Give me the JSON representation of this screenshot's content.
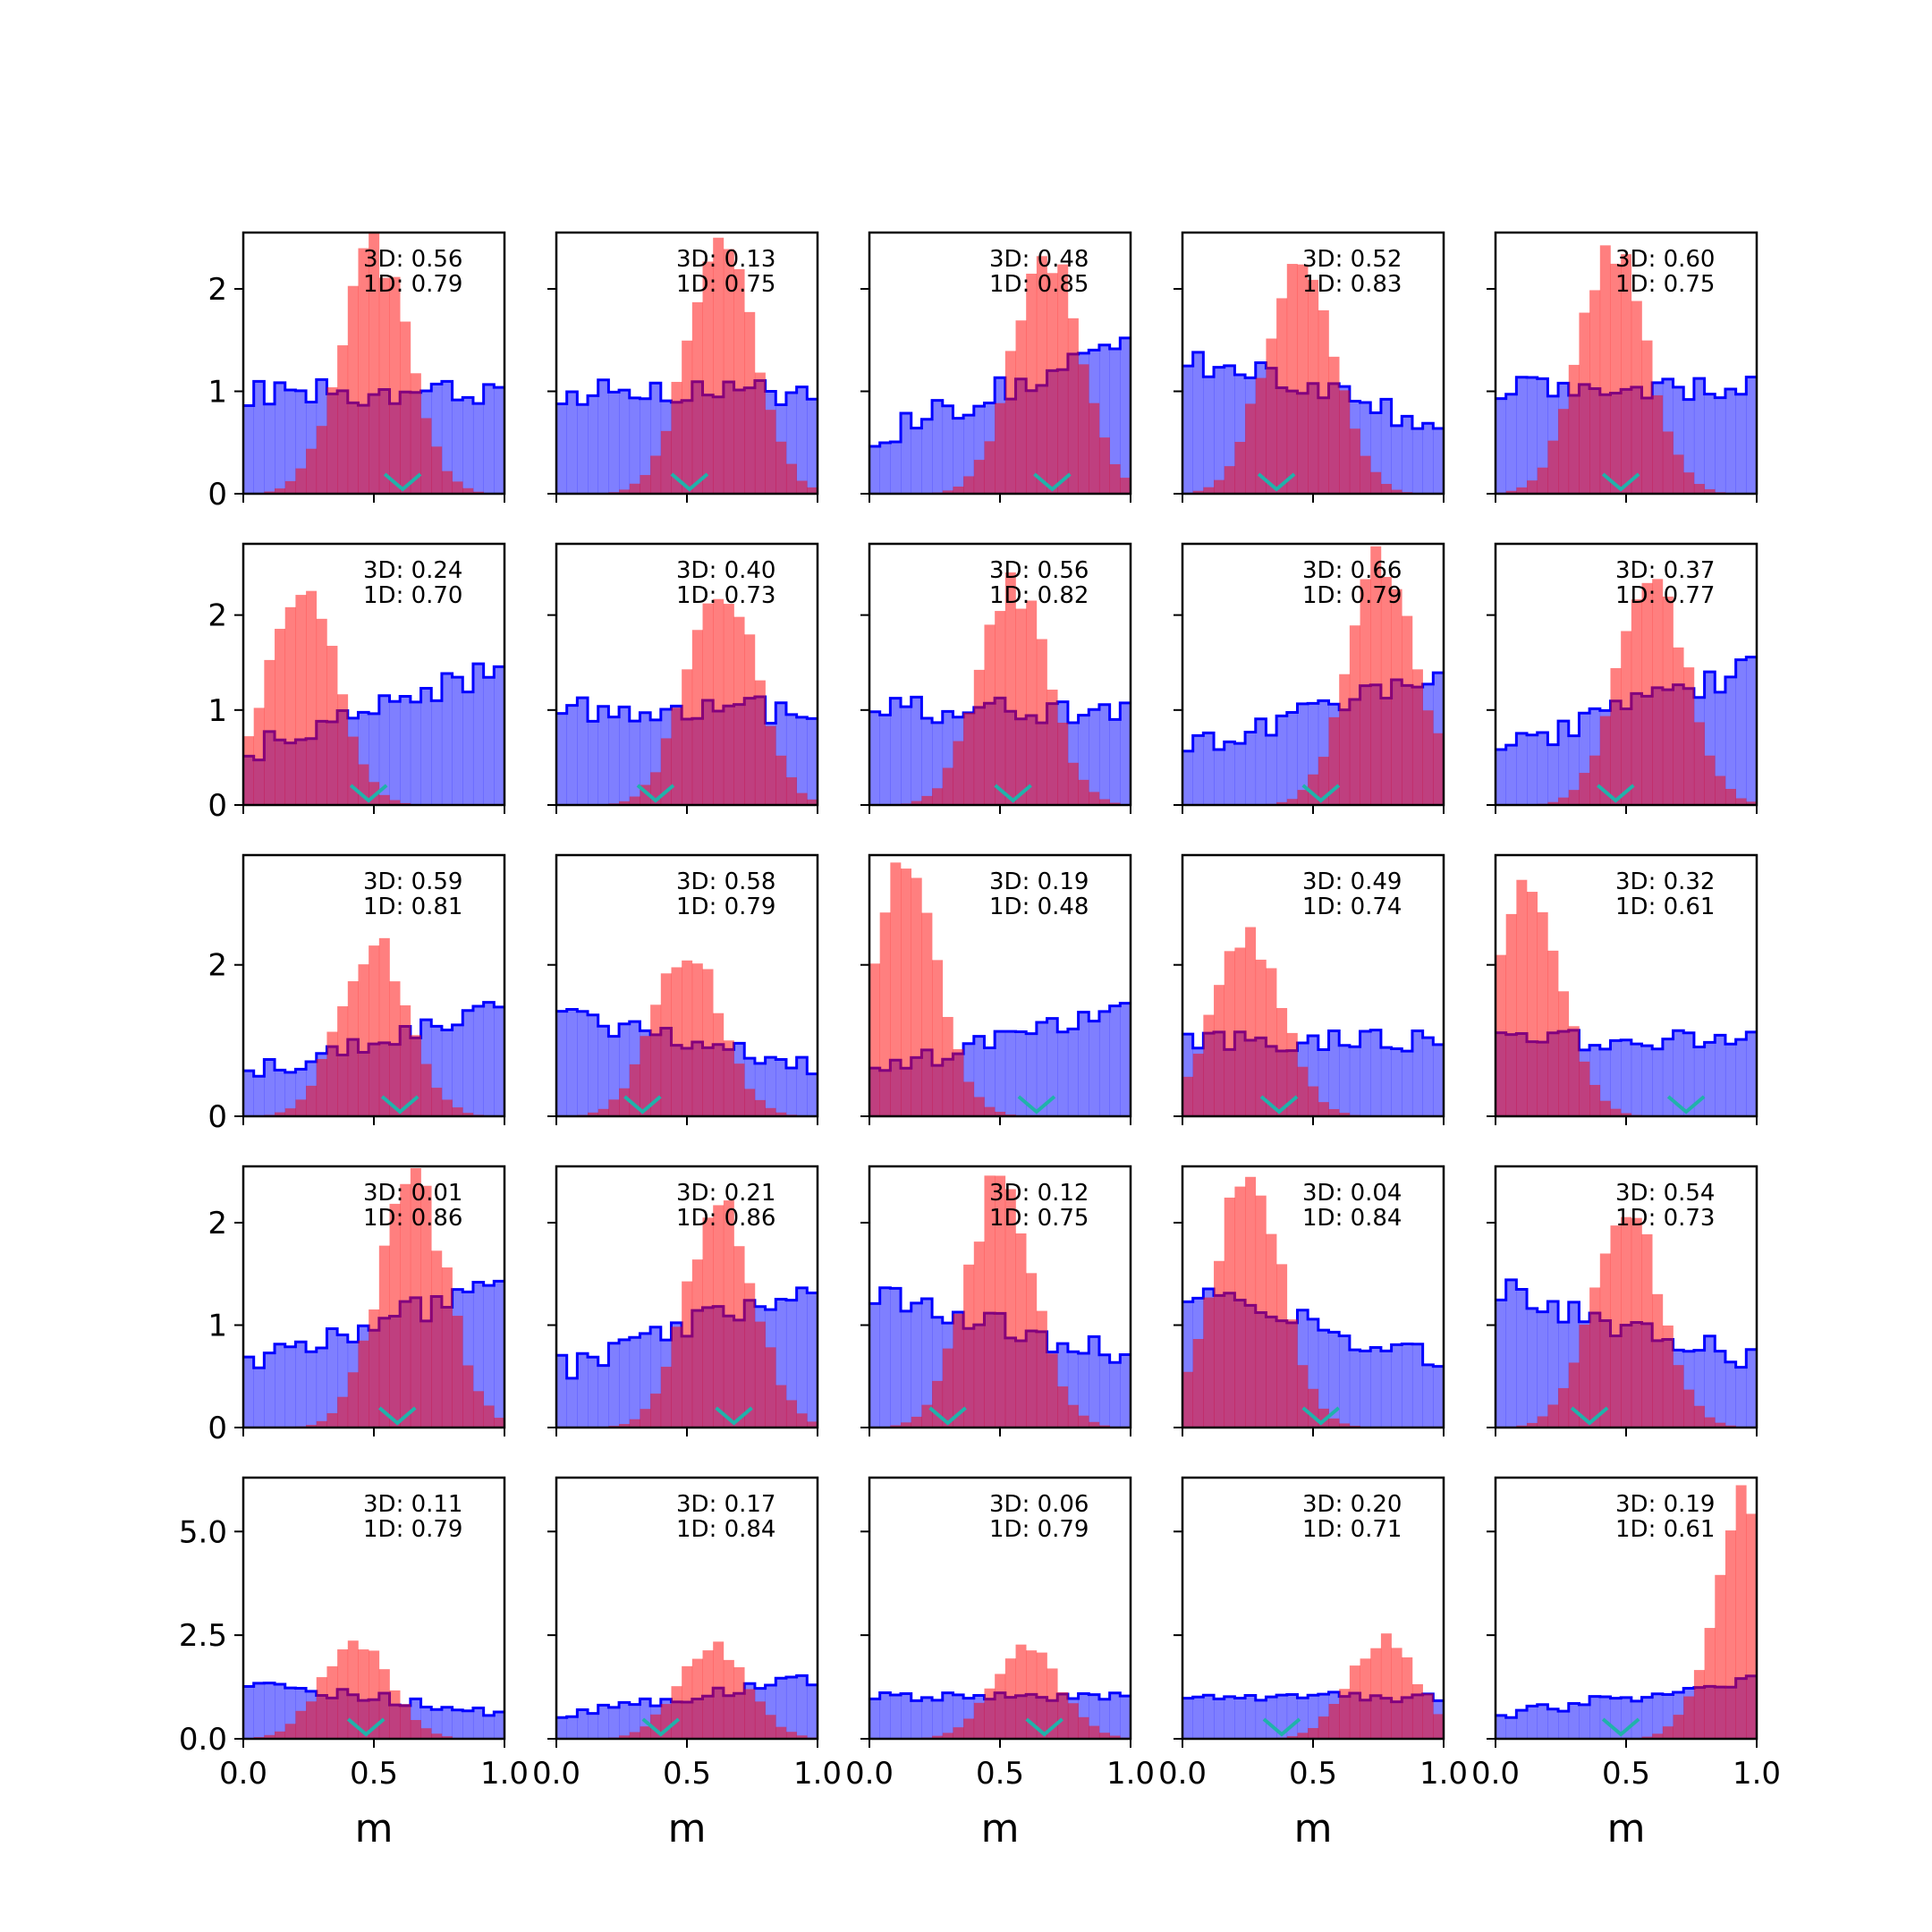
{
  "chart_data": {
    "type": "bar",
    "layout": {
      "rows": 5,
      "cols": 5
    },
    "xlim": [
      0,
      1
    ],
    "xlabel": "m",
    "ylim_by_row": [
      [
        0,
        2.55
      ],
      [
        0,
        2.75
      ],
      [
        0,
        3.45
      ],
      [
        0,
        2.55
      ],
      [
        0,
        6.3
      ]
    ],
    "xticks": {
      "values": [
        0.0,
        0.5,
        1.0
      ],
      "labels": [
        "0.0",
        "0.5",
        "1.0"
      ]
    },
    "yticks_by_row": [
      {
        "values": [
          0,
          1,
          2
        ],
        "labels": [
          "0",
          "1",
          "2"
        ]
      },
      {
        "values": [
          0,
          1,
          2
        ],
        "labels": [
          "0",
          "1",
          "2"
        ]
      },
      {
        "values": [
          0,
          2
        ],
        "labels": [
          "0",
          "2"
        ]
      },
      {
        "values": [
          0,
          1,
          2
        ],
        "labels": [
          "0",
          "1",
          "2"
        ]
      },
      {
        "values": [
          0,
          2.5,
          5
        ],
        "labels": [
          "0.0",
          "2.5",
          "5.0"
        ]
      }
    ],
    "colors": {
      "prior": "#0000ff",
      "posterior": "#ff0000",
      "truth": "#20b2aa"
    },
    "panels": [
      {
        "ann3d": "3D: 0.56",
        "ann1d": "1D: 0.79",
        "truth": 0.61,
        "prior_mode": "flat",
        "prior_level": 1.0,
        "post_mu": 0.5,
        "post_peak": 2.4
      },
      {
        "ann3d": "3D: 0.13",
        "ann1d": "1D: 0.75",
        "truth": 0.51,
        "prior_mode": "flat",
        "prior_level": 1.0,
        "post_mu": 0.63,
        "post_peak": 2.4
      },
      {
        "ann3d": "3D: 0.48",
        "ann1d": "1D: 0.85",
        "truth": 0.7,
        "prior_mode": "up",
        "prior_level": 1.0,
        "post_mu": 0.68,
        "post_peak": 2.35
      },
      {
        "ann3d": "3D: 0.52",
        "ann1d": "1D: 0.83",
        "truth": 0.36,
        "prior_mode": "down",
        "prior_level": 1.0,
        "post_mu": 0.45,
        "post_peak": 2.4
      },
      {
        "ann3d": "3D: 0.60",
        "ann1d": "1D: 0.75",
        "truth": 0.48,
        "prior_mode": "flat",
        "prior_level": 1.0,
        "post_mu": 0.45,
        "post_peak": 2.35
      },
      {
        "ann3d": "3D: 0.24",
        "ann1d": "1D: 0.70",
        "truth": 0.48,
        "prior_mode": "up",
        "prior_level": 1.0,
        "post_mu": 0.22,
        "post_peak": 2.4
      },
      {
        "ann3d": "3D: 0.40",
        "ann1d": "1D: 0.73",
        "truth": 0.38,
        "prior_mode": "flat",
        "prior_level": 1.0,
        "post_mu": 0.63,
        "post_peak": 2.4
      },
      {
        "ann3d": "3D: 0.56",
        "ann1d": "1D: 0.82",
        "truth": 0.55,
        "prior_mode": "flat",
        "prior_level": 1.0,
        "post_mu": 0.55,
        "post_peak": 2.35
      },
      {
        "ann3d": "3D: 0.66",
        "ann1d": "1D: 0.79",
        "truth": 0.53,
        "prior_mode": "up",
        "prior_level": 1.0,
        "post_mu": 0.77,
        "post_peak": 2.6
      },
      {
        "ann3d": "3D: 0.37",
        "ann1d": "1D: 0.77",
        "truth": 0.46,
        "prior_mode": "up",
        "prior_level": 1.0,
        "post_mu": 0.6,
        "post_peak": 2.4
      },
      {
        "ann3d": "3D: 0.59",
        "ann1d": "1D: 0.81",
        "truth": 0.6,
        "prior_mode": "up",
        "prior_level": 1.0,
        "post_mu": 0.5,
        "post_peak": 2.3
      },
      {
        "ann3d": "3D: 0.58",
        "ann1d": "1D: 0.79",
        "truth": 0.33,
        "prior_mode": "down",
        "prior_level": 1.0,
        "post_mu": 0.5,
        "post_peak": 2.2
      },
      {
        "ann3d": "3D: 0.19",
        "ann1d": "1D: 0.48",
        "truth": 0.64,
        "prior_mode": "up",
        "prior_level": 1.0,
        "post_mu": 0.13,
        "post_peak": 3.2
      },
      {
        "ann3d": "3D: 0.49",
        "ann1d": "1D: 0.74",
        "truth": 0.37,
        "prior_mode": "flat",
        "prior_level": 1.0,
        "post_mu": 0.25,
        "post_peak": 2.45
      },
      {
        "ann3d": "3D: 0.32",
        "ann1d": "1D: 0.61",
        "truth": 0.73,
        "prior_mode": "flat",
        "prior_level": 1.0,
        "post_mu": 0.12,
        "post_peak": 3.0
      },
      {
        "ann3d": "3D: 0.01",
        "ann1d": "1D: 0.86",
        "truth": 0.59,
        "prior_mode": "up",
        "prior_level": 1.0,
        "post_mu": 0.65,
        "post_peak": 2.4
      },
      {
        "ann3d": "3D: 0.21",
        "ann1d": "1D: 0.86",
        "truth": 0.68,
        "prior_mode": "up",
        "prior_level": 1.0,
        "post_mu": 0.63,
        "post_peak": 2.2
      },
      {
        "ann3d": "3D: 0.12",
        "ann1d": "1D: 0.75",
        "truth": 0.3,
        "prior_mode": "down",
        "prior_level": 1.0,
        "post_mu": 0.5,
        "post_peak": 2.4
      },
      {
        "ann3d": "3D: 0.04",
        "ann1d": "1D: 0.84",
        "truth": 0.53,
        "prior_mode": "down",
        "prior_level": 1.0,
        "post_mu": 0.25,
        "post_peak": 2.45
      },
      {
        "ann3d": "3D: 0.54",
        "ann1d": "1D: 0.73",
        "truth": 0.36,
        "prior_mode": "down",
        "prior_level": 1.0,
        "post_mu": 0.5,
        "post_peak": 2.2
      },
      {
        "ann3d": "3D: 0.11",
        "ann1d": "1D: 0.79",
        "truth": 0.47,
        "prior_mode": "down",
        "prior_level": 1.0,
        "post_mu": 0.43,
        "post_peak": 2.3
      },
      {
        "ann3d": "3D: 0.17",
        "ann1d": "1D: 0.84",
        "truth": 0.4,
        "prior_mode": "up",
        "prior_level": 1.0,
        "post_mu": 0.6,
        "post_peak": 2.3
      },
      {
        "ann3d": "3D: 0.06",
        "ann1d": "1D: 0.79",
        "truth": 0.67,
        "prior_mode": "flat",
        "prior_level": 1.0,
        "post_mu": 0.6,
        "post_peak": 2.15
      },
      {
        "ann3d": "3D: 0.20",
        "ann1d": "1D: 0.71",
        "truth": 0.38,
        "prior_mode": "flat",
        "prior_level": 1.0,
        "post_mu": 0.77,
        "post_peak": 2.4
      },
      {
        "ann3d": "3D: 0.19",
        "ann1d": "1D: 0.61",
        "truth": 0.48,
        "prior_mode": "up",
        "prior_level": 1.0,
        "post_mu": 0.98,
        "post_peak": 6.0
      }
    ]
  }
}
